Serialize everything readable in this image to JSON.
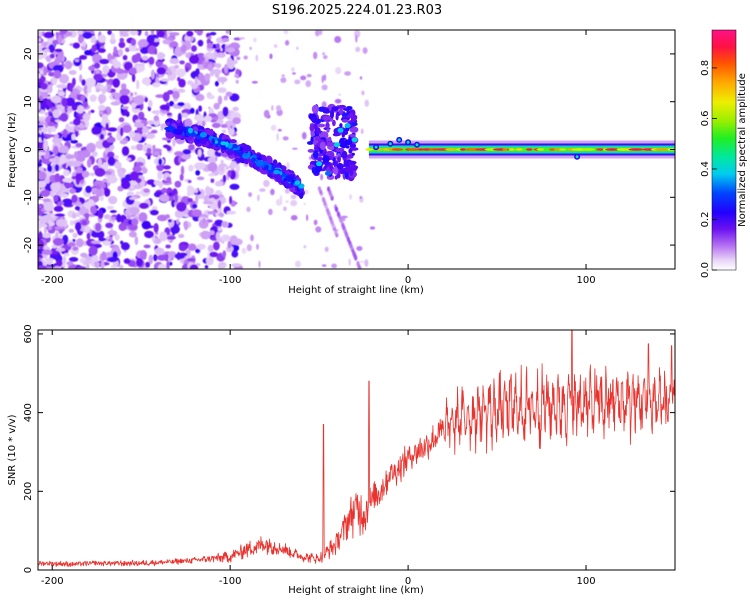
{
  "title": "S196.2025.224.01.23.R03",
  "chart_data": [
    {
      "type": "heatmap",
      "name": "spectrogram",
      "xlabel": "Height of straight line (km)",
      "ylabel": "Frequency (Hz)",
      "xlim": [
        -208,
        150
      ],
      "ylim": [
        -25,
        25
      ],
      "xticks": [
        -200,
        -100,
        0,
        100
      ],
      "yticks": [
        -20,
        -10,
        0,
        10,
        20
      ],
      "colorbar": {
        "label": "Normalized spectral amplitude",
        "range": [
          0,
          0.95
        ],
        "ticks": [
          0.0,
          0.2,
          0.4,
          0.6,
          0.8
        ]
      },
      "features": [
        {
          "name": "noise-field",
          "x_range": [
            -208,
            -115
          ],
          "y_range": [
            -25,
            25
          ],
          "amplitude": 0.1
        },
        {
          "name": "descending-arc",
          "x_start": -135,
          "y_start": 4.5,
          "x_end": -60,
          "y_end": -8,
          "amplitude": 0.25
        },
        {
          "name": "second-arc",
          "x_start": -55,
          "y_start": 5,
          "x_end": -30,
          "y_end": -6,
          "amplitude": 0.2
        },
        {
          "name": "carrier-line",
          "x_range": [
            -22,
            150
          ],
          "frequency": 0,
          "amplitude": 0.85
        }
      ]
    },
    {
      "type": "line",
      "name": "snr",
      "xlabel": "Height of straight line (km)",
      "ylabel": "SNR (10 * v/v)",
      "xlim": [
        -208,
        150
      ],
      "ylim": [
        0,
        610
      ],
      "xticks": [
        -200,
        -100,
        0,
        100
      ],
      "yticks": [
        0,
        200,
        400,
        600
      ],
      "series": [
        {
          "name": "SNR",
          "color": "#e8332e",
          "x": [
            -208,
            -190,
            -170,
            -150,
            -130,
            -115,
            -100,
            -90,
            -80,
            -70,
            -60,
            -50,
            -40,
            -35,
            -30,
            -25,
            -20,
            -15,
            -10,
            -5,
            0,
            10,
            20,
            30,
            40,
            50,
            60,
            70,
            80,
            90,
            100,
            110,
            120,
            130,
            140,
            150
          ],
          "envelope": [
            18,
            16,
            18,
            18,
            22,
            28,
            35,
            55,
            70,
            55,
            35,
            30,
            70,
            120,
            160,
            150,
            180,
            210,
            250,
            260,
            290,
            320,
            360,
            390,
            405,
            410,
            415,
            420,
            425,
            428,
            430,
            432,
            432,
            433,
            434,
            435
          ],
          "spread": [
            15,
            15,
            15,
            16,
            16,
            18,
            30,
            45,
            55,
            40,
            25,
            28,
            60,
            90,
            140,
            120,
            90,
            85,
            80,
            80,
            80,
            85,
            95,
            110,
            130,
            140,
            150,
            150,
            150,
            150,
            150,
            150,
            150,
            150,
            150,
            150
          ],
          "peaks": [
            [
              -47.5,
              370
            ],
            [
              -22,
              480
            ],
            [
              92,
              615
            ],
            [
              135,
              575
            ],
            [
              148,
              570
            ]
          ]
        }
      ]
    }
  ],
  "colors": {
    "snr_line": "#e8332e",
    "frame": "#000000"
  }
}
